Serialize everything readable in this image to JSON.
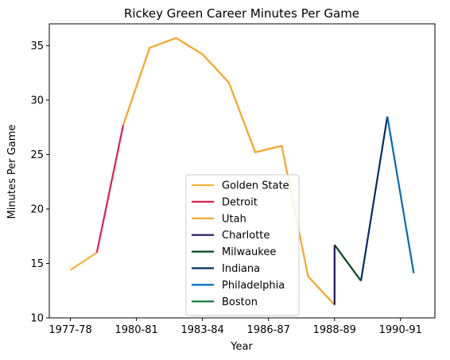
{
  "chart_data": {
    "type": "line",
    "title": "Rickey Green Career Minutes Per Game",
    "xlabel": "Year",
    "ylabel": "Minutes Per Game",
    "ylim": [
      10,
      37
    ],
    "yticks": [
      10,
      15,
      20,
      25,
      30,
      35
    ],
    "xlim": [
      -0.8,
      13.8
    ],
    "xticks": [
      {
        "label": "1977-78",
        "x": 0
      },
      {
        "label": "1980-81",
        "x": 2.5
      },
      {
        "label": "1983-84",
        "x": 5
      },
      {
        "label": "1986-87",
        "x": 7.5
      },
      {
        "label": "1988-89",
        "x": 10
      },
      {
        "label": "1990-91",
        "x": 12.5
      }
    ],
    "grid": false,
    "legend_position": "lower-center",
    "series": [
      {
        "name": "Golden State",
        "color": "#f9b13b",
        "x": [
          0,
          1
        ],
        "y": [
          14.4,
          16.0
        ]
      },
      {
        "name": "Detroit",
        "color": "#e0204b",
        "x": [
          1,
          2
        ],
        "y": [
          16.0,
          27.7
        ]
      },
      {
        "name": "Utah",
        "color": "#f5a623",
        "x": [
          2,
          3,
          4,
          5,
          6,
          7,
          8,
          9,
          10
        ],
        "y": [
          27.7,
          34.8,
          35.7,
          34.2,
          31.6,
          25.2,
          25.8,
          13.8,
          11.2
        ]
      },
      {
        "name": "Charlotte",
        "color": "#1d1160",
        "x": [
          10,
          10
        ],
        "y": [
          11.2,
          16.7
        ]
      },
      {
        "name": "Milwaukee",
        "color": "#00471b",
        "x": [
          10,
          11
        ],
        "y": [
          16.7,
          13.4
        ]
      },
      {
        "name": "Indiana",
        "color": "#002d62",
        "x": [
          11,
          12
        ],
        "y": [
          13.4,
          28.5
        ]
      },
      {
        "name": "Philadelphia",
        "color": "#006bb6",
        "x": [
          12,
          13
        ],
        "y": [
          28.5,
          14.1
        ]
      },
      {
        "name": "Boston",
        "color": "#007a33",
        "x": [],
        "y": []
      }
    ]
  }
}
